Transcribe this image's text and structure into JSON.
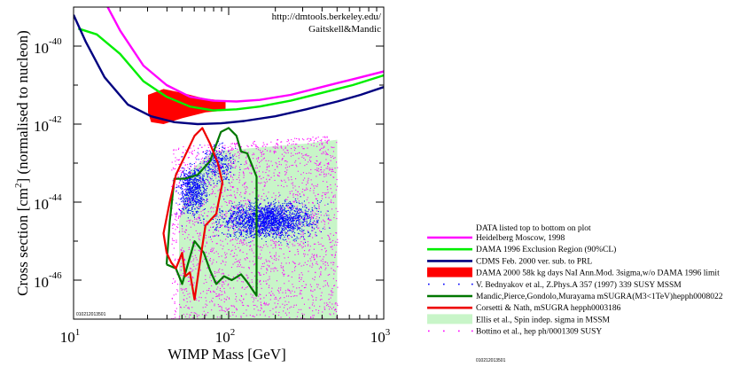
{
  "chart_data": {
    "type": "line",
    "xlabel": "WIMP Mass [GeV]",
    "ylabel_parts": [
      "Cross  section [cm",
      "2",
      "] (normalised to nucleon)"
    ],
    "x_scale": "log",
    "y_scale": "log",
    "xlim": [
      10,
      1000
    ],
    "ylim_log10": [
      -47,
      -39
    ],
    "x_ticks": [
      {
        "base": "10",
        "exp": "1",
        "log": 1
      },
      {
        "base": "10",
        "exp": "2",
        "log": 2
      },
      {
        "base": "10",
        "exp": "3",
        "log": 3
      }
    ],
    "y_ticks": [
      {
        "base": "10",
        "exp": "-40",
        "log": -40
      },
      {
        "base": "10",
        "exp": "-42",
        "log": -42
      },
      {
        "base": "10",
        "exp": "-44",
        "log": -44
      },
      {
        "base": "10",
        "exp": "-46",
        "log": -46
      }
    ],
    "credit_lines": [
      "http://dmtools.berkeley.edu/",
      "Gaitskell&Mandic"
    ],
    "plot_id": "010212013501",
    "legend_title": "DATA listed top to bottom on plot",
    "legend_id": "010212013501",
    "series": [
      {
        "name": "Heidelberg Moscow, 1998",
        "kind": "line",
        "color": "#ff00ff",
        "points": [
          [
            1.18,
            -38.7
          ],
          [
            1.3,
            -39.6
          ],
          [
            1.45,
            -40.5
          ],
          [
            1.6,
            -41.0
          ],
          [
            1.75,
            -41.3
          ],
          [
            1.9,
            -41.4
          ],
          [
            2.05,
            -41.42
          ],
          [
            2.2,
            -41.38
          ],
          [
            2.4,
            -41.25
          ],
          [
            2.6,
            -41.05
          ],
          [
            2.8,
            -40.85
          ],
          [
            3.0,
            -40.65
          ]
        ]
      },
      {
        "name": "DAMA 1996 Exclusion Region (90%CL)",
        "kind": "line",
        "color": "#00ee00",
        "points": [
          [
            1.03,
            -39.55
          ],
          [
            1.15,
            -39.7
          ],
          [
            1.3,
            -40.2
          ],
          [
            1.45,
            -40.9
          ],
          [
            1.6,
            -41.3
          ],
          [
            1.75,
            -41.55
          ],
          [
            1.9,
            -41.65
          ],
          [
            2.05,
            -41.62
          ],
          [
            2.2,
            -41.55
          ],
          [
            2.4,
            -41.4
          ],
          [
            2.6,
            -41.2
          ],
          [
            2.8,
            -41.0
          ],
          [
            3.0,
            -40.75
          ]
        ]
      },
      {
        "name": "CDMS Feb. 2000 ver. sub. to PRL",
        "kind": "line",
        "color": "#000080",
        "points": [
          [
            1.0,
            -39.2
          ],
          [
            1.08,
            -39.9
          ],
          [
            1.2,
            -40.8
          ],
          [
            1.35,
            -41.5
          ],
          [
            1.5,
            -41.8
          ],
          [
            1.65,
            -41.95
          ],
          [
            1.8,
            -42.0
          ],
          [
            1.95,
            -41.98
          ],
          [
            2.1,
            -41.92
          ],
          [
            2.3,
            -41.8
          ],
          [
            2.5,
            -41.62
          ],
          [
            2.7,
            -41.42
          ],
          [
            2.85,
            -41.25
          ],
          [
            3.0,
            -41.05
          ]
        ]
      },
      {
        "name": "DAMA 2000 58k kg days NaI Ann.Mod. 3sigma,w/o DAMA 1996 limit",
        "kind": "region",
        "color": "#ff0000",
        "points": [
          [
            1.48,
            -41.25
          ],
          [
            1.58,
            -41.1
          ],
          [
            1.7,
            -41.2
          ],
          [
            1.85,
            -41.35
          ],
          [
            1.98,
            -41.4
          ],
          [
            1.98,
            -41.65
          ],
          [
            1.85,
            -41.7
          ],
          [
            1.7,
            -41.85
          ],
          [
            1.58,
            -42.0
          ],
          [
            1.5,
            -41.95
          ],
          [
            1.48,
            -41.7
          ]
        ]
      },
      {
        "name": "V. Bednyakov et al., Z.Phys.A 357 (1997) 339 SUSY MSSM",
        "kind": "scatter",
        "color": "#0000ff"
      },
      {
        "name": "Mandic,Pierce,Gondolo,Murayama mSUGRA(M3<1TeV)hepph0008022",
        "kind": "line",
        "color": "#007700",
        "points": [
          [
            1.6,
            -45.6
          ],
          [
            1.62,
            -44.5
          ],
          [
            1.65,
            -43.4
          ],
          [
            1.72,
            -43.4
          ],
          [
            1.8,
            -43.3
          ],
          [
            1.88,
            -42.95
          ],
          [
            1.95,
            -42.2
          ],
          [
            2.0,
            -42.1
          ],
          [
            2.05,
            -42.3
          ],
          [
            2.08,
            -42.7
          ],
          [
            2.12,
            -42.75
          ],
          [
            2.18,
            -43.35
          ],
          [
            2.18,
            -46.4
          ],
          [
            2.12,
            -46.05
          ],
          [
            2.08,
            -45.85
          ],
          [
            2.02,
            -46.0
          ],
          [
            1.97,
            -45.9
          ],
          [
            1.92,
            -46.1
          ],
          [
            1.88,
            -45.75
          ],
          [
            1.84,
            -45.3
          ],
          [
            1.78,
            -45.0
          ],
          [
            1.74,
            -45.55
          ],
          [
            1.7,
            -46.1
          ],
          [
            1.66,
            -45.7
          ],
          [
            1.6,
            -45.6
          ]
        ]
      },
      {
        "name": "Corsetti & Nath, mSUGRA hepph0003186",
        "kind": "line",
        "color": "#ee0000",
        "points": [
          [
            1.62,
            -44.0
          ],
          [
            1.66,
            -43.3
          ],
          [
            1.72,
            -42.8
          ],
          [
            1.78,
            -42.3
          ],
          [
            1.83,
            -42.1
          ],
          [
            1.88,
            -42.5
          ],
          [
            1.93,
            -43.0
          ],
          [
            1.96,
            -43.5
          ],
          [
            1.92,
            -44.3
          ],
          [
            1.85,
            -44.6
          ],
          [
            1.82,
            -45.4
          ],
          [
            1.78,
            -46.5
          ],
          [
            1.75,
            -45.8
          ],
          [
            1.72,
            -45.9
          ],
          [
            1.7,
            -45.3
          ],
          [
            1.66,
            -45.7
          ],
          [
            1.63,
            -45.55
          ],
          [
            1.6,
            -45.3
          ],
          [
            1.58,
            -44.8
          ],
          [
            1.6,
            -44.4
          ],
          [
            1.62,
            -44.0
          ]
        ]
      },
      {
        "name": "Ellis et al., Spin indep. sigma in MSSM",
        "kind": "region",
        "color": "#c8f5c8",
        "points": [
          [
            1.68,
            -47.0
          ],
          [
            1.68,
            -44.5
          ],
          [
            1.75,
            -43.2
          ],
          [
            1.9,
            -42.7
          ],
          [
            2.2,
            -42.6
          ],
          [
            2.5,
            -42.5
          ],
          [
            2.7,
            -42.4
          ],
          [
            2.7,
            -47.0
          ]
        ]
      },
      {
        "name": "Bottino et al., hep ph/0001309 SUSY",
        "kind": "scatter",
        "color": "#ff00ff"
      }
    ]
  }
}
